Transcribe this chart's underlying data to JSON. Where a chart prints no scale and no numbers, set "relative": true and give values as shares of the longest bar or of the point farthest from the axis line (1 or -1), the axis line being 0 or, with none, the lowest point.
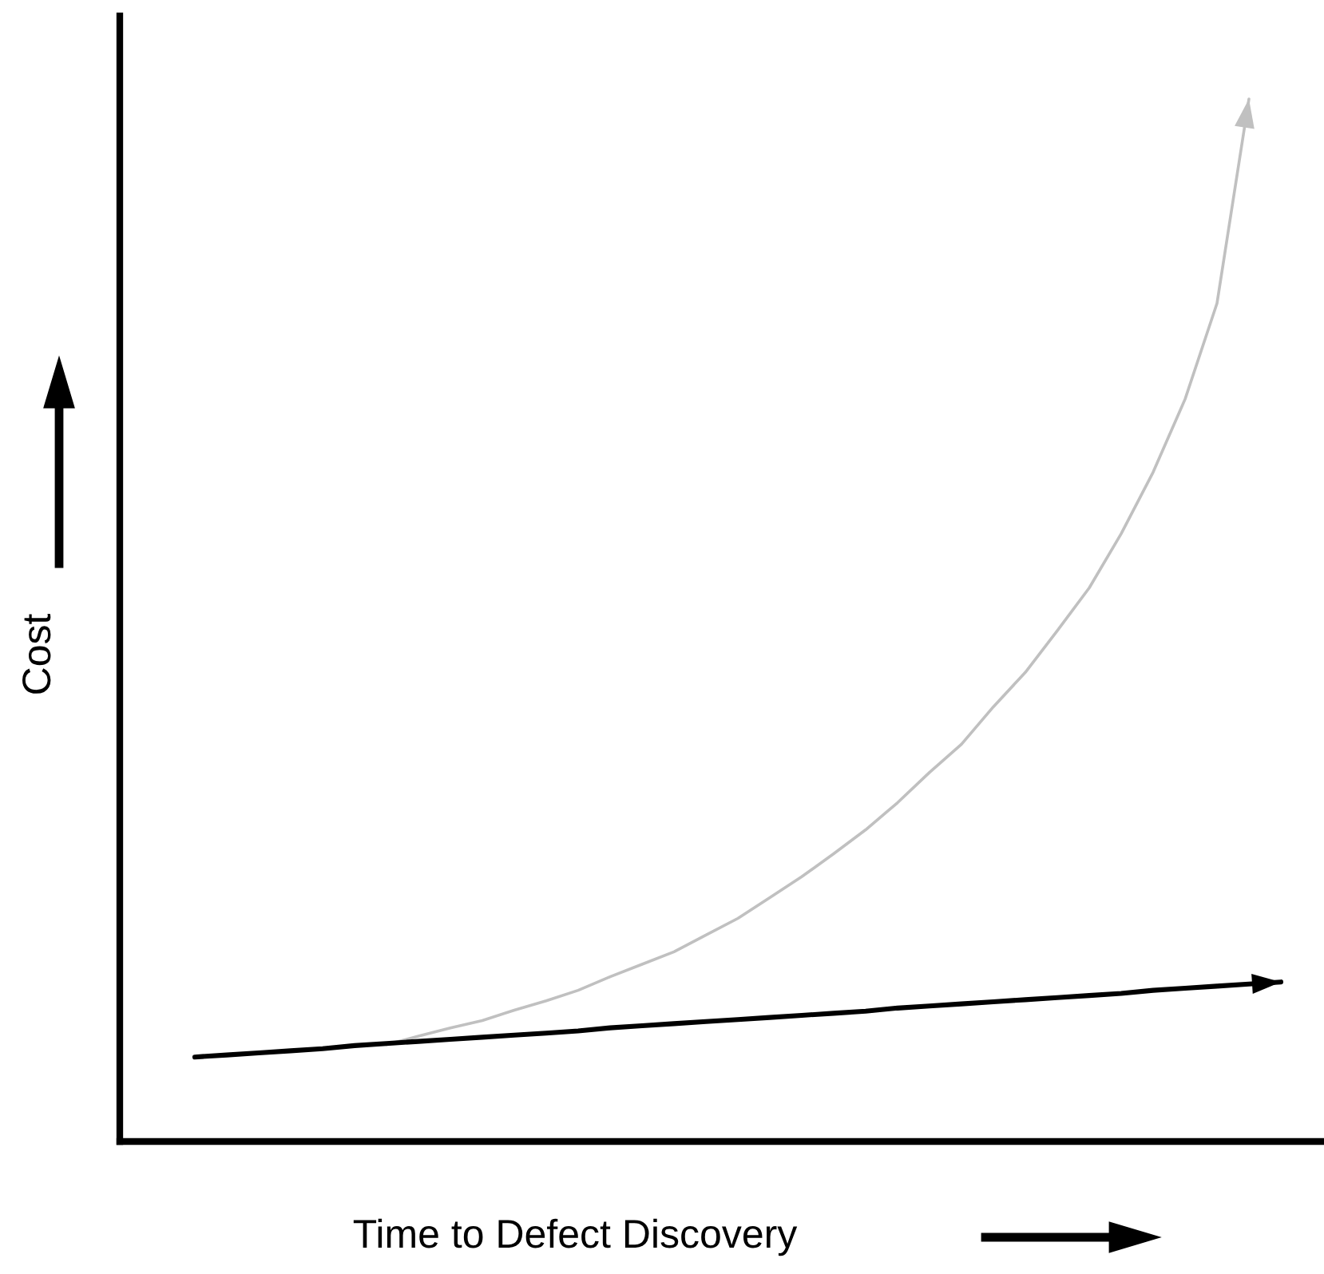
{
  "chart_data": {
    "type": "line",
    "relative": true,
    "xlabel": "Time to Defect Discovery",
    "ylabel": "Cost",
    "categories": [
      null,
      null,
      null,
      null,
      null,
      null,
      null,
      null,
      null,
      null,
      null,
      null,
      null,
      null,
      null,
      null,
      null,
      null,
      null,
      null,
      null,
      null,
      null,
      null,
      null,
      null,
      null,
      null,
      null,
      null,
      null,
      null,
      null,
      null,
      null
    ],
    "series": [
      {
        "color": "#c0c0c0",
        "values": [
          null,
          null,
          null,
          null,
          null,
          null,
          0.093,
          0.101,
          0.109,
          0.116,
          0.126,
          0.135,
          0.145,
          0.158,
          0.17,
          0.182,
          0.198,
          0.214,
          0.234,
          0.254,
          0.276,
          0.299,
          0.325,
          0.354,
          0.381,
          0.417,
          0.45,
          0.49,
          0.531,
          0.583,
          0.642,
          0.712,
          0.804,
          1,
          null
        ]
      },
      {
        "color": "#000000",
        "values": [
          0.081,
          0.083,
          0.085,
          0.087,
          0.089,
          0.092,
          0.094,
          0.096,
          0.098,
          0.1,
          0.102,
          0.104,
          0.106,
          0.109,
          0.111,
          0.113,
          0.115,
          0.117,
          0.119,
          0.121,
          0.123,
          0.125,
          0.128,
          0.13,
          0.132,
          0.134,
          0.136,
          0.138,
          0.14,
          0.142,
          0.145,
          0.147,
          0.149,
          0.151,
          0.153
        ]
      }
    ]
  }
}
